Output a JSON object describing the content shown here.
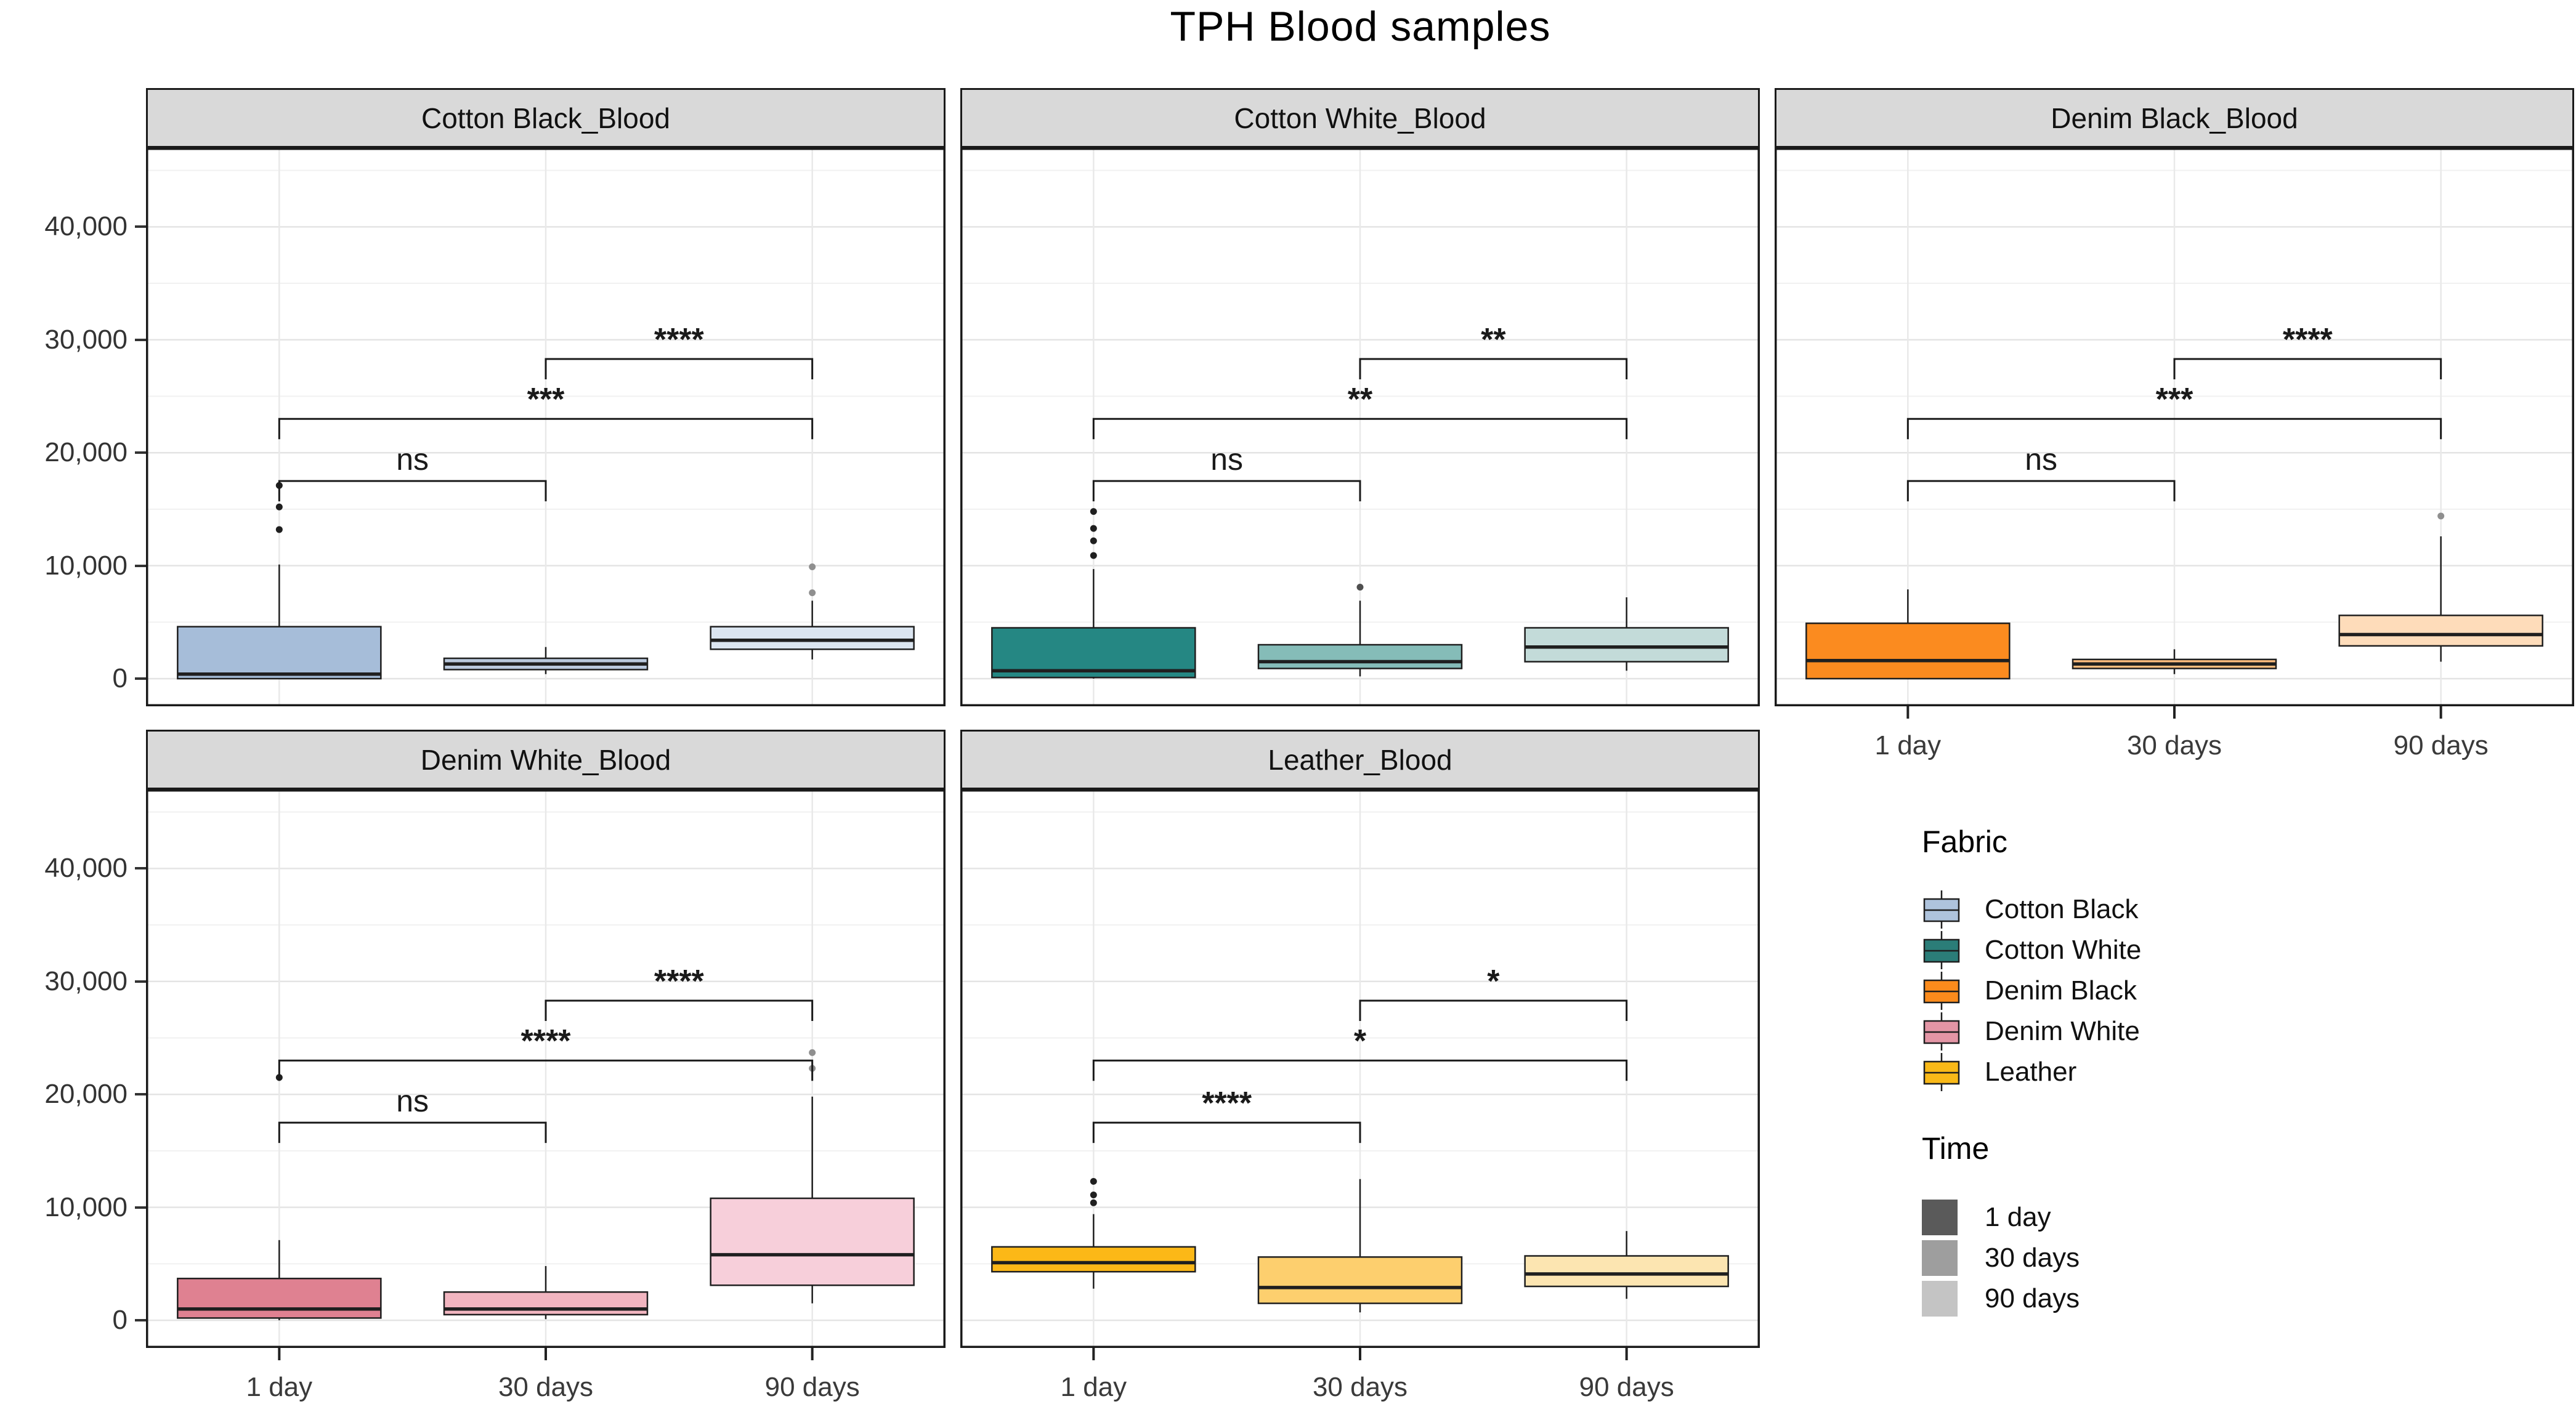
{
  "title": "TPH Blood samples",
  "y_axis": {
    "tick_labels": [
      "40,000",
      "30,000",
      "20,000",
      "10,000",
      "0"
    ],
    "tick_values": [
      40000,
      30000,
      20000,
      10000,
      0
    ]
  },
  "x_axis": {
    "categories": [
      "1 day",
      "30 days",
      "90 days"
    ]
  },
  "legend": {
    "fabric": {
      "title": "Fabric",
      "items": [
        {
          "label": "Cotton Black",
          "color": "#aec3dc"
        },
        {
          "label": "Cotton White",
          "color": "#2b7d78"
        },
        {
          "label": "Denim Black",
          "color": "#fb8b1c"
        },
        {
          "label": "Denim White",
          "color": "#e395a5"
        },
        {
          "label": "Leather",
          "color": "#f9b918"
        }
      ]
    },
    "time": {
      "title": "Time",
      "items": [
        {
          "label": "1 day",
          "color": "#5a5a5a"
        },
        {
          "label": "30 days",
          "color": "#9e9e9e"
        },
        {
          "label": "90 days",
          "color": "#c4c4c4"
        }
      ]
    }
  },
  "colors": {
    "strip_bg": "#d9d9d9",
    "panel_border": "#1a1a1a",
    "grid_major": "#e4e4e4",
    "grid_minor": "#f1f1f1",
    "grid_vertical": "#e9e9e9",
    "box_stroke": "#1f1f1f",
    "axis_text": "#3a3a3a",
    "outlier_by_time": [
      "#1f1f1f",
      "#4f4f4f",
      "#8f8f8f"
    ]
  },
  "chart_data": {
    "type": "boxplot",
    "title": "TPH Blood samples",
    "y_range": [
      -2450,
      47000
    ],
    "y_major_gridlines": [
      0,
      10000,
      20000,
      30000,
      40000
    ],
    "y_minor_gridlines": [
      5000,
      15000,
      25000,
      35000,
      45000
    ],
    "categories": [
      "1 day",
      "30 days",
      "90 days"
    ],
    "significance_y": {
      "b1": 17500,
      "b2": 23000,
      "b3": 28300,
      "tick_drop": 1800
    },
    "facets": [
      {
        "title": "Cotton Black_Blood",
        "row": 0,
        "col": 0,
        "show_x_labels": false,
        "fills": [
          "#a6bdd9",
          "#b9c8dd",
          "#dbe5f0"
        ],
        "boxes": [
          {
            "category": "1 day",
            "min": 0,
            "q1": 0,
            "median": 400,
            "q3": 4600,
            "max": 10100,
            "outliers": [
              13200,
              15200,
              17100
            ]
          },
          {
            "category": "30 days",
            "min": 400,
            "q1": 800,
            "median": 1300,
            "q3": 1800,
            "max": 2800,
            "outliers": []
          },
          {
            "category": "90 days",
            "min": 1700,
            "q1": 2600,
            "median": 3400,
            "q3": 4600,
            "max": 6900,
            "outliers": [
              7600,
              9900
            ]
          }
        ],
        "significance": [
          {
            "pair": [
              0,
              1
            ],
            "label": "ns",
            "level": "b1"
          },
          {
            "pair": [
              0,
              2
            ],
            "label": "***",
            "level": "b2"
          },
          {
            "pair": [
              1,
              2
            ],
            "label": "****",
            "level": "b3"
          }
        ]
      },
      {
        "title": "Cotton White_Blood",
        "row": 0,
        "col": 1,
        "show_x_labels": false,
        "fills": [
          "#258783",
          "#85bcb8",
          "#c3dbd9"
        ],
        "boxes": [
          {
            "category": "1 day",
            "min": 0,
            "q1": 100,
            "median": 700,
            "q3": 4500,
            "max": 9700,
            "outliers": [
              10900,
              12200,
              13300,
              14800
            ]
          },
          {
            "category": "30 days",
            "min": 200,
            "q1": 900,
            "median": 1500,
            "q3": 3000,
            "max": 6900,
            "outliers": [
              8100
            ]
          },
          {
            "category": "90 days",
            "min": 700,
            "q1": 1500,
            "median": 2800,
            "q3": 4500,
            "max": 7200,
            "outliers": []
          }
        ],
        "significance": [
          {
            "pair": [
              0,
              1
            ],
            "label": "ns",
            "level": "b1"
          },
          {
            "pair": [
              0,
              2
            ],
            "label": "**",
            "level": "b2"
          },
          {
            "pair": [
              1,
              2
            ],
            "label": "**",
            "level": "b3"
          }
        ]
      },
      {
        "title": "Denim Black_Blood",
        "row": 0,
        "col": 2,
        "show_x_labels": true,
        "fills": [
          "#fb8b1f",
          "#fdbd7e",
          "#fedcba"
        ],
        "boxes": [
          {
            "category": "1 day",
            "min": 0,
            "q1": 0,
            "median": 1600,
            "q3": 4900,
            "max": 7900,
            "outliers": []
          },
          {
            "category": "30 days",
            "min": 400,
            "q1": 900,
            "median": 1300,
            "q3": 1700,
            "max": 2600,
            "outliers": []
          },
          {
            "category": "90 days",
            "min": 1500,
            "q1": 2900,
            "median": 3900,
            "q3": 5600,
            "max": 12600,
            "outliers": [
              14400
            ]
          }
        ],
        "significance": [
          {
            "pair": [
              0,
              1
            ],
            "label": "ns",
            "level": "b1"
          },
          {
            "pair": [
              0,
              2
            ],
            "label": "***",
            "level": "b2"
          },
          {
            "pair": [
              1,
              2
            ],
            "label": "****",
            "level": "b3"
          }
        ]
      },
      {
        "title": "Denim White_Blood",
        "row": 1,
        "col": 0,
        "show_x_labels": true,
        "fills": [
          "#df8191",
          "#f2b5c0",
          "#f7cfda"
        ],
        "boxes": [
          {
            "category": "1 day",
            "min": 0,
            "q1": 200,
            "median": 1000,
            "q3": 3700,
            "max": 7100,
            "outliers": [
              21500
            ]
          },
          {
            "category": "30 days",
            "min": 100,
            "q1": 500,
            "median": 1000,
            "q3": 2500,
            "max": 4800,
            "outliers": []
          },
          {
            "category": "90 days",
            "min": 1500,
            "q1": 3100,
            "median": 5800,
            "q3": 10800,
            "max": 19800,
            "outliers": [
              22300,
              23700
            ]
          }
        ],
        "significance": [
          {
            "pair": [
              0,
              1
            ],
            "label": "ns",
            "level": "b1"
          },
          {
            "pair": [
              0,
              2
            ],
            "label": "****",
            "level": "b2"
          },
          {
            "pair": [
              1,
              2
            ],
            "label": "****",
            "level": "b3"
          }
        ]
      },
      {
        "title": "Leather_Blood",
        "row": 1,
        "col": 1,
        "show_x_labels": true,
        "fills": [
          "#fcb817",
          "#fdcf6e",
          "#fce5b1"
        ],
        "boxes": [
          {
            "category": "1 day",
            "min": 2800,
            "q1": 4300,
            "median": 5100,
            "q3": 6500,
            "max": 9400,
            "outliers": [
              10400,
              11100,
              12300
            ]
          },
          {
            "category": "30 days",
            "min": 700,
            "q1": 1500,
            "median": 2900,
            "q3": 5600,
            "max": 12500,
            "outliers": []
          },
          {
            "category": "90 days",
            "min": 1900,
            "q1": 3000,
            "median": 4100,
            "q3": 5700,
            "max": 7900,
            "outliers": []
          }
        ],
        "significance": [
          {
            "pair": [
              0,
              1
            ],
            "label": "****",
            "level": "b1"
          },
          {
            "pair": [
              0,
              2
            ],
            "label": "*",
            "level": "b2"
          },
          {
            "pair": [
              1,
              2
            ],
            "label": "*",
            "level": "b3"
          }
        ]
      }
    ]
  }
}
